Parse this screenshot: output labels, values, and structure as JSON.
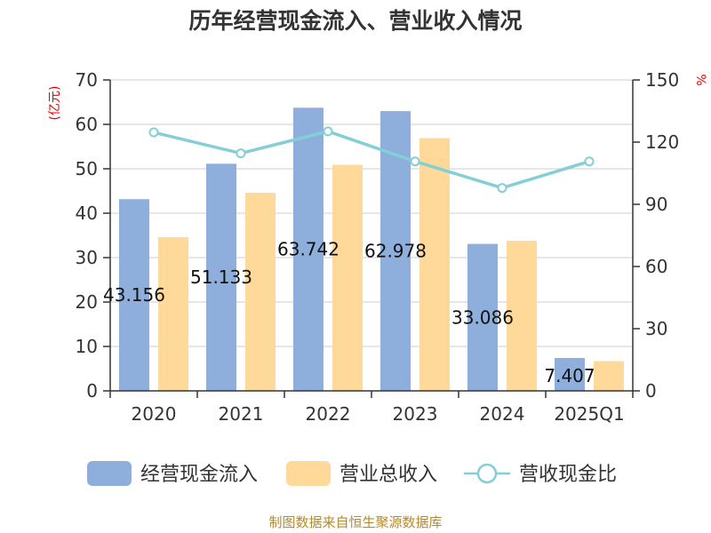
{
  "chart_data": {
    "type": "bar",
    "title": "历年经营现金流入、营业收入情况",
    "categories": [
      "2020",
      "2021",
      "2022",
      "2023",
      "2024",
      "2025Q1"
    ],
    "series": [
      {
        "name": "经营现金流入",
        "type": "bar",
        "axis": "left",
        "color": "#8eaedc",
        "values": [
          43.156,
          51.133,
          63.742,
          62.978,
          33.086,
          7.407
        ],
        "labels": [
          "43.156",
          "51.133",
          "63.742",
          "62.978",
          "33.086",
          "7.407"
        ]
      },
      {
        "name": "营业总收入",
        "type": "bar",
        "axis": "left",
        "color": "#ffd99a",
        "values": [
          34.6,
          44.6,
          50.9,
          56.9,
          33.8,
          6.7
        ]
      },
      {
        "name": "营收现金比",
        "type": "line",
        "axis": "right",
        "color": "#84cfd6",
        "values": [
          124.7,
          114.6,
          125.2,
          110.7,
          97.9,
          110.7
        ]
      }
    ],
    "y_left": {
      "unit": "(亿元)",
      "range": [
        0,
        70
      ],
      "ticks": [
        "0",
        "10",
        "20",
        "30",
        "40",
        "50",
        "60",
        "70"
      ]
    },
    "y_right": {
      "unit": "%",
      "range": [
        0,
        150
      ],
      "ticks": [
        "0",
        "30",
        "60",
        "90",
        "120",
        "150"
      ]
    },
    "grid": true,
    "legend_position": "bottom",
    "source": "制图数据来自恒生聚源数据库"
  }
}
